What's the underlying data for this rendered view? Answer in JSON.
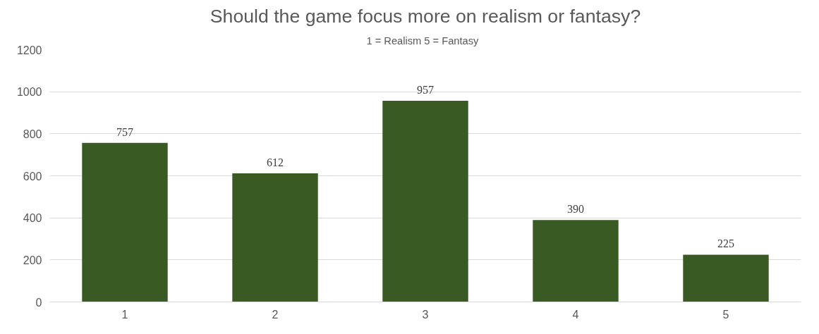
{
  "chart_data": {
    "type": "bar",
    "title": "Should the game focus more on realism or fantasy?",
    "subtitle": "1 = Realism   5 = Fantasy",
    "categories": [
      "1",
      "2",
      "3",
      "4",
      "5"
    ],
    "values": [
      757,
      612,
      957,
      390,
      225
    ],
    "color": "#3a5a24",
    "ylim": [
      0,
      1200
    ],
    "yticks": [
      0,
      200,
      400,
      600,
      800,
      1000,
      1200
    ],
    "grid": "y",
    "data_labels": true
  }
}
